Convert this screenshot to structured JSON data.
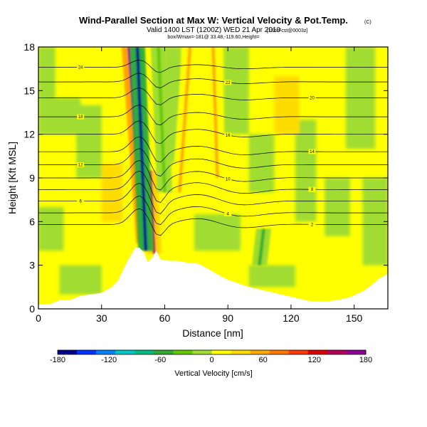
{
  "chart_data": {
    "type": "heatmap",
    "title": "Wind-Parallel Section at Max W: Vertical Velocity & Pot.Temp.",
    "title_mark": "(C)",
    "subtitle": "Valid 1400 LST (1200Z) WED 21 Apr 2010",
    "subtitle_tag": "[18hrFcst@0003z]",
    "subtitle2": "box/Wmax=-181@ 33.48,-119.60,Height=",
    "xlabel": "Distance [nm]",
    "ylabel": "Height [Kft MSL]",
    "xlim": [
      0,
      166
    ],
    "ylim": [
      0,
      18
    ],
    "xticks": [
      0,
      30,
      60,
      90,
      120,
      150
    ],
    "yticks": [
      0,
      3,
      6,
      9,
      12,
      15,
      18
    ],
    "colorbar": {
      "title": "Vertical Velocity [cm/s]",
      "min": -180,
      "max": 180,
      "ticks": [
        -180,
        -120,
        -60,
        0,
        60,
        120,
        180
      ],
      "colors": [
        "#00008c",
        "#0032ff",
        "#0082ff",
        "#00c8c8",
        "#00be82",
        "#32aa32",
        "#64c800",
        "#a0dc32",
        "#ffff00",
        "#ffdc00",
        "#ffaa00",
        "#ff7800",
        "#ff3c00",
        "#dc0000",
        "#b4005a",
        "#8c0096"
      ]
    },
    "terrain": [
      [
        0,
        0.3
      ],
      [
        5,
        0.3
      ],
      [
        10,
        0.6
      ],
      [
        15,
        0.6
      ],
      [
        20,
        0.9
      ],
      [
        25,
        1.0
      ],
      [
        30,
        1.1
      ],
      [
        35,
        1.5
      ],
      [
        38,
        2.0
      ],
      [
        40,
        2.6
      ],
      [
        42,
        3.2
      ],
      [
        44,
        3.7
      ],
      [
        46,
        4.2
      ],
      [
        48,
        4.2
      ],
      [
        50,
        3.9
      ],
      [
        52,
        3.2
      ],
      [
        54,
        3.5
      ],
      [
        56,
        4.0
      ],
      [
        58,
        3.4
      ],
      [
        62,
        3.3
      ],
      [
        66,
        3.3
      ],
      [
        70,
        3.2
      ],
      [
        76,
        3.1
      ],
      [
        80,
        2.8
      ],
      [
        86,
        2.3
      ],
      [
        90,
        2.0
      ],
      [
        96,
        1.7
      ],
      [
        100,
        1.5
      ],
      [
        106,
        1.3
      ],
      [
        112,
        1.1
      ],
      [
        118,
        0.9
      ],
      [
        124,
        0.7
      ],
      [
        130,
        0.5
      ],
      [
        136,
        0.5
      ],
      [
        142,
        0.6
      ],
      [
        148,
        0.8
      ],
      [
        154,
        1.2
      ],
      [
        158,
        1.6
      ],
      [
        162,
        2.1
      ],
      [
        166,
        2.4
      ]
    ],
    "updraft_bands": [
      {
        "x_bottom": 50,
        "z_bottom": 4.5,
        "x_top": 43,
        "z_top": 18,
        "peak_w": 180
      },
      {
        "x_bottom": 55,
        "z_bottom": 3.8,
        "x_top": 53,
        "z_top": 9.5,
        "peak_w": 140
      },
      {
        "x_bottom": 67,
        "z_bottom": 8.0,
        "x_top": 72,
        "z_top": 18,
        "peak_w": 50
      },
      {
        "x_bottom": 85,
        "z_bottom": 9.0,
        "x_top": 83,
        "z_top": 18,
        "peak_w": 50
      }
    ],
    "downdraft_bands": [
      {
        "x_bottom": 51,
        "z_bottom": 4.0,
        "x_top": 47,
        "z_top": 18,
        "peak_w": -181
      },
      {
        "x_bottom": 60,
        "z_bottom": 8.0,
        "x_top": 57,
        "z_top": 18,
        "peak_w": -40
      },
      {
        "x_bottom": 105,
        "z_bottom": 3.0,
        "x_top": 107,
        "z_top": 5.5,
        "peak_w": -60
      }
    ],
    "theta_contours": [
      {
        "label": "24",
        "base_z": 16.6
      },
      {
        "label": "22",
        "base_z": 15.6
      },
      {
        "label": "20",
        "base_z": 14.5
      },
      {
        "label": "18",
        "base_z": 13.2
      },
      {
        "label": "16",
        "base_z": 12.0
      },
      {
        "label": "14",
        "base_z": 10.8
      },
      {
        "label": "12",
        "base_z": 9.9
      },
      {
        "label": "10",
        "base_z": 9.0
      },
      {
        "label": "8",
        "base_z": 8.2
      },
      {
        "label": "6",
        "base_z": 7.4
      },
      {
        "label": "4",
        "base_z": 6.6
      },
      {
        "label": "2",
        "base_z": 5.8
      }
    ]
  }
}
